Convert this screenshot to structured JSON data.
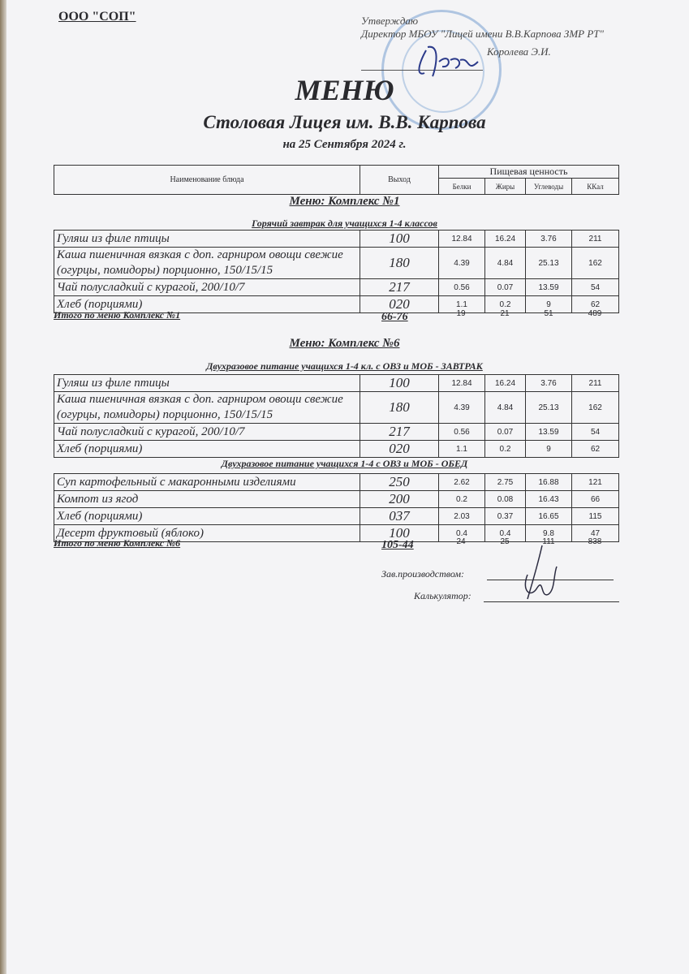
{
  "header": {
    "organization": "ООО \"СОП\"",
    "approval_line1": "Утверждаю",
    "approval_line2": "Директор МБОУ \"Лицей имени В.В.Карпова ЗМР РТ\"",
    "approver_name": "Королева Э.И."
  },
  "title": "МЕНЮ",
  "subtitle": "Столовая Лицея им. В.В. Карпова",
  "date": "на 25 Сентября 2024 г.",
  "columns": {
    "name": "Наименование блюда",
    "output": "Выход",
    "nutrition": "Пищевая ценность",
    "protein": "Белки",
    "fat": "Жиры",
    "carbs": "Углеводы",
    "kcal": "ККал"
  },
  "sections": [
    {
      "title": "Меню: Комплекс №1",
      "groups": [
        {
          "title": "Горячий завтрак для учащихся 1-4 классов",
          "rows": [
            {
              "name": "Гуляш из филе птицы",
              "output": "100",
              "protein": "12.84",
              "fat": "16.24",
              "carbs": "3.76",
              "kcal": "211"
            },
            {
              "name": "Каша пшеничная вязкая с доп. гарниром овощи свежие (огурцы, помидоры) порционно, 150/15/15",
              "output": "180",
              "protein": "4.39",
              "fat": "4.84",
              "carbs": "25.13",
              "kcal": "162"
            },
            {
              "name": "Чай полусладкий с курагой, 200/10/7",
              "output": "217",
              "protein": "0.56",
              "fat": "0.07",
              "carbs": "13.59",
              "kcal": "54"
            },
            {
              "name": "Хлеб (порциями)",
              "output": "020",
              "protein": "1.1",
              "fat": "0.2",
              "carbs": "9",
              "kcal": "62"
            }
          ]
        }
      ],
      "total": {
        "label": "Итого по меню Комплекс №1",
        "output": "66-76",
        "protein": "19",
        "fat": "21",
        "carbs": "51",
        "kcal": "489"
      }
    },
    {
      "title": "Меню: Комплекс №6",
      "groups": [
        {
          "title": "Двухразовое питание учащихся 1-4 кл. с ОВЗ и МОБ - ЗАВТРАК",
          "rows": [
            {
              "name": "Гуляш из филе птицы",
              "output": "100",
              "protein": "12.84",
              "fat": "16.24",
              "carbs": "3.76",
              "kcal": "211"
            },
            {
              "name": "Каша пшеничная вязкая с доп. гарниром овощи свежие (огурцы, помидоры) порционно, 150/15/15",
              "output": "180",
              "protein": "4.39",
              "fat": "4.84",
              "carbs": "25.13",
              "kcal": "162"
            },
            {
              "name": "Чай полусладкий с курагой, 200/10/7",
              "output": "217",
              "protein": "0.56",
              "fat": "0.07",
              "carbs": "13.59",
              "kcal": "54"
            },
            {
              "name": "Хлеб (порциями)",
              "output": "020",
              "protein": "1.1",
              "fat": "0.2",
              "carbs": "9",
              "kcal": "62"
            }
          ]
        },
        {
          "title": "Двухразовое питание учащихся 1-4 с ОВЗ и МОБ - ОБЕД",
          "rows": [
            {
              "name": "Суп картофельный с макаронными изделиями",
              "output": "250",
              "protein": "2.62",
              "fat": "2.75",
              "carbs": "16.88",
              "kcal": "121"
            },
            {
              "name": "Компот из  ягод",
              "output": "200",
              "protein": "0.2",
              "fat": "0.08",
              "carbs": "16.43",
              "kcal": "66"
            },
            {
              "name": "Хлеб (порциями)",
              "output": "037",
              "protein": "2.03",
              "fat": "0.37",
              "carbs": "16.65",
              "kcal": "115"
            },
            {
              "name": "Десерт фруктовый (яблоко)",
              "output": "100",
              "protein": "0.4",
              "fat": "0.4",
              "carbs": "9.8",
              "kcal": "47"
            }
          ]
        }
      ],
      "total": {
        "label": "Итого по меню Комплекс №6",
        "output": "105-44",
        "protein": "24",
        "fat": "25",
        "carbs": "111",
        "kcal": "838"
      }
    }
  ],
  "signatures": {
    "production": "Зав.производством:",
    "calculator": "Калькулятор:"
  },
  "colors": {
    "stamp": "#5a8cc8",
    "signature_ink": "#2b3a8a",
    "text": "#2a2a2e"
  }
}
